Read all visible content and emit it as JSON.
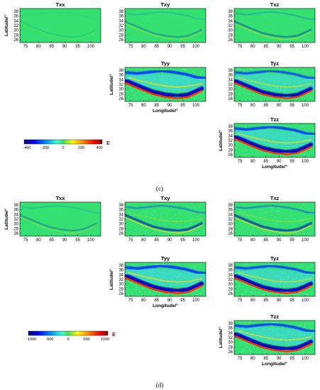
{
  "figure": {
    "axes": {
      "xlabel": "Longitude/°",
      "ylabel": "Latitude/°",
      "xticks": [
        "75",
        "80",
        "85",
        "90",
        "95",
        "100"
      ],
      "yticks": [
        "38",
        "36",
        "34",
        "32",
        "30",
        "28",
        "26"
      ]
    },
    "captions": {
      "c": "(c)",
      "d": "(d)"
    },
    "panel_c": {
      "unit_label": "E",
      "colorbar_ticks": [
        "-400",
        "-200",
        "0",
        "200",
        "400"
      ],
      "maps": [
        {
          "title": "Txx",
          "intensity": 0.05
        },
        {
          "title": "Txy",
          "intensity": 0.22
        },
        {
          "title": "Txz",
          "intensity": 0.3
        },
        {
          "title": "Tyy",
          "intensity": 1.0
        },
        {
          "title": "Tyz",
          "intensity": 0.85
        },
        {
          "title": "Tzz",
          "intensity": 0.95
        }
      ]
    },
    "panel_d": {
      "unit_label": "E",
      "colorbar_ticks": [
        "-1000",
        "-500",
        "0",
        "500",
        "1000"
      ],
      "maps": [
        {
          "title": "Txx",
          "intensity": 0.22
        },
        {
          "title": "Txy",
          "intensity": 0.5
        },
        {
          "title": "Txz",
          "intensity": 0.5
        },
        {
          "title": "Tyy",
          "intensity": 1.0
        },
        {
          "title": "Tyz",
          "intensity": 0.9
        },
        {
          "title": "Tzz",
          "intensity": 0.95
        }
      ]
    },
    "colors": {
      "background_green": "#33e070",
      "jet_stops": [
        "#00007f",
        "#0000ff",
        "#00a0ff",
        "#40ffcf",
        "#40e060",
        "#ffff00",
        "#ff8000",
        "#ff0000",
        "#7f0000"
      ]
    }
  }
}
